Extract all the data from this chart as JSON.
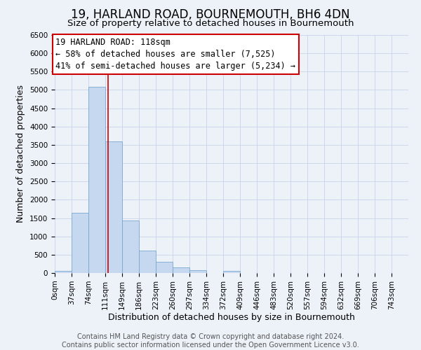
{
  "title": "19, HARLAND ROAD, BOURNEMOUTH, BH6 4DN",
  "subtitle": "Size of property relative to detached houses in Bournemouth",
  "xlabel": "Distribution of detached houses by size in Bournemouth",
  "ylabel": "Number of detached properties",
  "bar_color": "#c5d8f0",
  "bar_edge_color": "#7aa8d0",
  "bin_labels": [
    "0sqm",
    "37sqm",
    "74sqm",
    "111sqm",
    "149sqm",
    "186sqm",
    "223sqm",
    "260sqm",
    "297sqm",
    "334sqm",
    "372sqm",
    "409sqm",
    "446sqm",
    "483sqm",
    "520sqm",
    "557sqm",
    "594sqm",
    "632sqm",
    "669sqm",
    "706sqm",
    "743sqm"
  ],
  "bar_heights": [
    60,
    1650,
    5080,
    3600,
    1430,
    620,
    300,
    150,
    80,
    0,
    50,
    0,
    0,
    0,
    0,
    0,
    0,
    0,
    0,
    0,
    0
  ],
  "property_line_x": 118,
  "property_line_label": "19 HARLAND ROAD: 118sqm",
  "annotation_line1": "← 58% of detached houses are smaller (7,525)",
  "annotation_line2": "41% of semi-detached houses are larger (5,234) →",
  "ylim": [
    0,
    6500
  ],
  "yticks": [
    0,
    500,
    1000,
    1500,
    2000,
    2500,
    3000,
    3500,
    4000,
    4500,
    5000,
    5500,
    6000,
    6500
  ],
  "bin_edges": [
    0,
    37,
    74,
    111,
    149,
    186,
    223,
    260,
    297,
    334,
    372,
    409,
    446,
    483,
    520,
    557,
    594,
    632,
    669,
    706,
    743,
    780
  ],
  "footer_line1": "Contains HM Land Registry data © Crown copyright and database right 2024.",
  "footer_line2": "Contains public sector information licensed under the Open Government Licence v3.0.",
  "background_color": "#edf2f9",
  "plot_bg_color": "#edf2f9",
  "grid_color": "#c8d4e8",
  "annotation_box_color": "#ffffff",
  "annotation_box_edge": "#cc0000",
  "red_line_color": "#cc0000",
  "title_fontsize": 12,
  "subtitle_fontsize": 9.5,
  "tick_fontsize": 7.5,
  "label_fontsize": 9,
  "footer_fontsize": 7,
  "annotation_fontsize": 8.5
}
